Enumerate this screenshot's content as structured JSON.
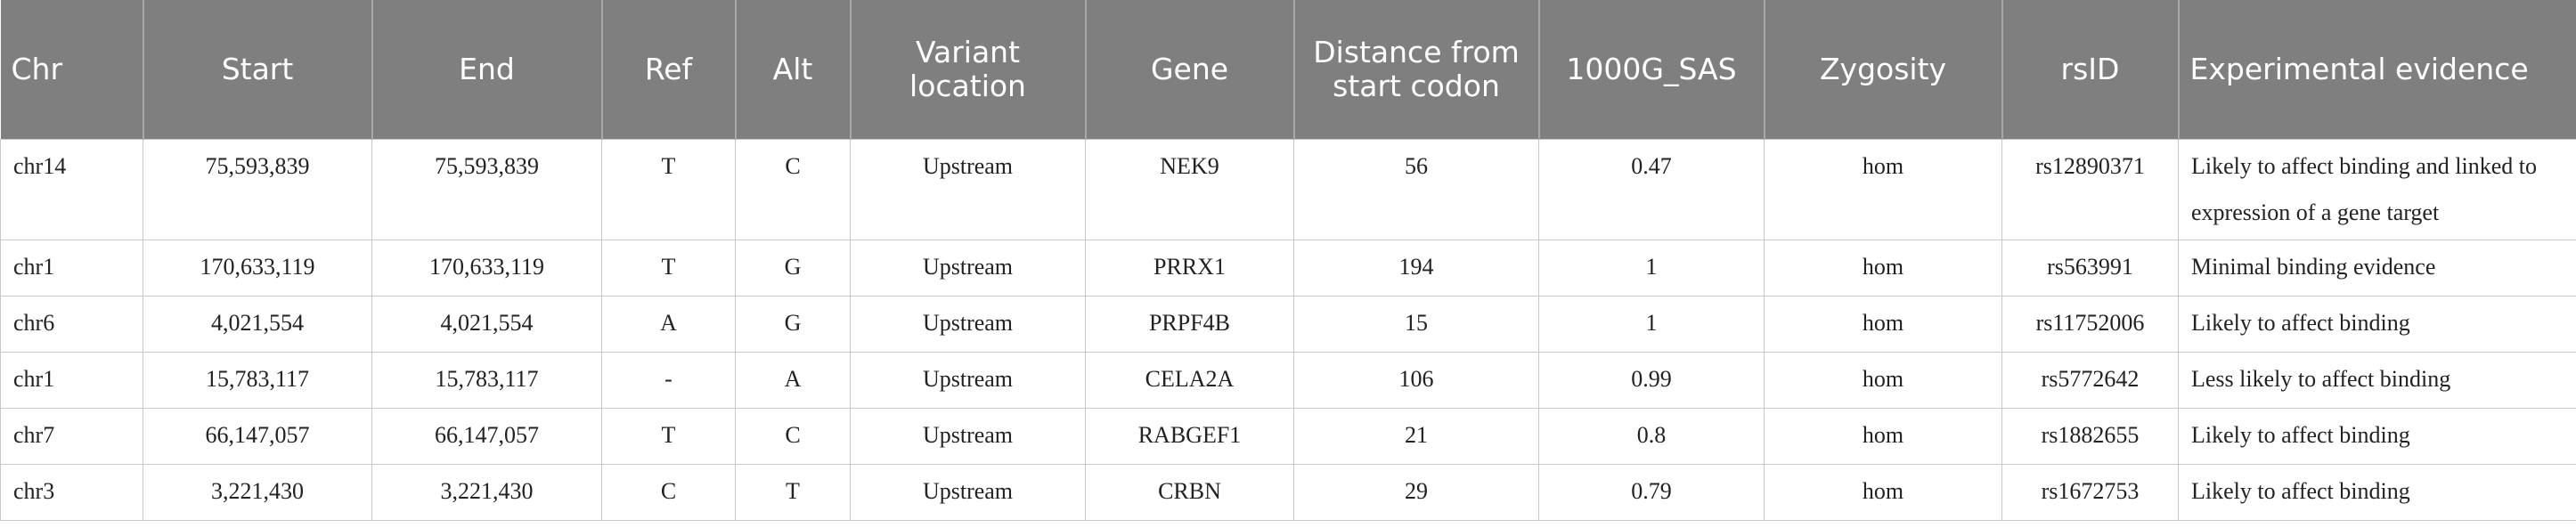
{
  "table": {
    "headers": [
      "Chr",
      "Start",
      "End",
      "Ref",
      "Alt",
      "Variant location",
      "Gene",
      "Distance from start codon",
      "1000G_SAS",
      "Zygosity",
      "rsID",
      "Experimental evidence"
    ],
    "rows": [
      [
        "chr14",
        "75,593,839",
        "75,593,839",
        "T",
        "C",
        "Upstream",
        "NEK9",
        "56",
        "0.47",
        "hom",
        "rs12890371",
        "Likely to affect binding and linked to expression of a gene target"
      ],
      [
        "chr1",
        "170,633,119",
        "170,633,119",
        "T",
        "G",
        "Upstream",
        "PRRX1",
        "194",
        "1",
        "hom",
        "rs563991",
        "Minimal binding evidence"
      ],
      [
        "chr6",
        "4,021,554",
        "4,021,554",
        "A",
        "G",
        "Upstream",
        "PRPF4B",
        "15",
        "1",
        "hom",
        "rs11752006",
        "Likely to affect binding"
      ],
      [
        "chr1",
        "15,783,117",
        "15,783,117",
        "-",
        "A",
        "Upstream",
        "CELA2A",
        "106",
        "0.99",
        "hom",
        "rs5772642",
        "Less likely to affect binding"
      ],
      [
        "chr7",
        "66,147,057",
        "66,147,057",
        "T",
        "C",
        "Upstream",
        "RABGEF1",
        "21",
        "0.8",
        "hom",
        "rs1882655",
        "Likely to affect binding"
      ],
      [
        "chr3",
        "3,221,430",
        "3,221,430",
        "C",
        "T",
        "Upstream",
        "CRBN",
        "29",
        "0.79",
        "hom",
        "rs1672753",
        "Likely to affect binding"
      ]
    ]
  }
}
